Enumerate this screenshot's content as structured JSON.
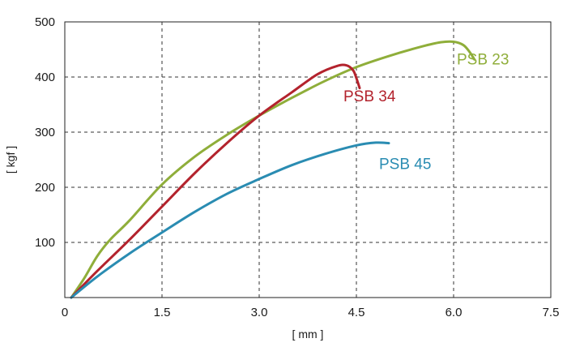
{
  "chart_data": {
    "type": "line",
    "xlabel": "[ mm ]",
    "ylabel": "[ kgf ]",
    "xlim": [
      0,
      7.5
    ],
    "ylim": [
      0,
      500
    ],
    "xticks": [
      0,
      1.5,
      3.0,
      4.5,
      6.0,
      7.5
    ],
    "xtick_labels": [
      "0",
      "1.5",
      "3.0",
      "4.5",
      "6.0",
      "7.5"
    ],
    "yticks": [
      100,
      200,
      300,
      400,
      500
    ],
    "ytick_labels": [
      "100",
      "200",
      "300",
      "400",
      "500"
    ],
    "grid": true,
    "series": [
      {
        "name": "PSB 23",
        "color": "#8fae3a",
        "label_at": [
          6.05,
          423
        ],
        "points": [
          [
            0.1,
            0
          ],
          [
            0.3,
            35
          ],
          [
            0.5,
            75
          ],
          [
            0.7,
            105
          ],
          [
            1.0,
            140
          ],
          [
            1.5,
            205
          ],
          [
            2.0,
            255
          ],
          [
            2.5,
            295
          ],
          [
            3.0,
            330
          ],
          [
            3.5,
            362
          ],
          [
            4.0,
            392
          ],
          [
            4.5,
            418
          ],
          [
            5.0,
            438
          ],
          [
            5.5,
            455
          ],
          [
            5.8,
            463
          ],
          [
            6.0,
            464
          ],
          [
            6.15,
            458
          ],
          [
            6.25,
            445
          ],
          [
            6.32,
            432
          ]
        ]
      },
      {
        "name": "PSB 34",
        "color": "#b3232d",
        "label_at": [
          4.3,
          356
        ],
        "points": [
          [
            0.1,
            0
          ],
          [
            0.5,
            48
          ],
          [
            1.0,
            105
          ],
          [
            1.5,
            165
          ],
          [
            2.0,
            225
          ],
          [
            2.5,
            280
          ],
          [
            3.0,
            330
          ],
          [
            3.5,
            372
          ],
          [
            3.9,
            405
          ],
          [
            4.2,
            420
          ],
          [
            4.35,
            421
          ],
          [
            4.45,
            412
          ],
          [
            4.5,
            398
          ],
          [
            4.55,
            380
          ]
        ]
      },
      {
        "name": "PSB 45",
        "color": "#2a8cb2",
        "label_at": [
          4.85,
          233
        ],
        "points": [
          [
            0.1,
            0
          ],
          [
            0.5,
            38
          ],
          [
            1.0,
            80
          ],
          [
            1.5,
            118
          ],
          [
            2.0,
            155
          ],
          [
            2.5,
            188
          ],
          [
            3.0,
            215
          ],
          [
            3.5,
            240
          ],
          [
            4.0,
            260
          ],
          [
            4.5,
            276
          ],
          [
            4.8,
            281
          ],
          [
            5.0,
            280
          ]
        ]
      }
    ]
  }
}
